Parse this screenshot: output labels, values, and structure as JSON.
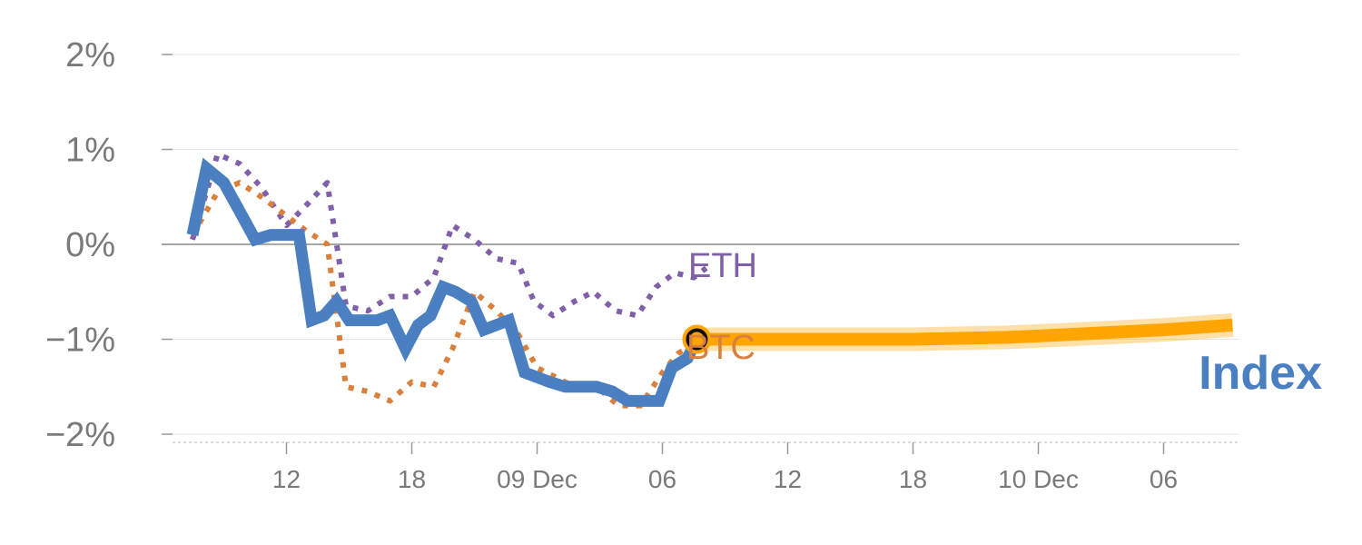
{
  "chart_data": {
    "type": "line",
    "y_unit": "%",
    "ylim": [
      -2,
      2
    ],
    "yticks": [
      -2,
      -1,
      0,
      1,
      2
    ],
    "ytick_labels": [
      "−2%",
      "−1%",
      "0%",
      "1%",
      "2%"
    ],
    "xlim": [
      -1,
      34
    ],
    "xticks": [
      {
        "pos": 3,
        "label": "12"
      },
      {
        "pos": 7,
        "label": "18"
      },
      {
        "pos": 11,
        "label": "09 Dec"
      },
      {
        "pos": 15,
        "label": "06"
      },
      {
        "pos": 19,
        "label": "12"
      },
      {
        "pos": 23,
        "label": "18"
      },
      {
        "pos": 27,
        "label": "10 Dec"
      },
      {
        "pos": 31,
        "label": "06"
      }
    ],
    "grid": true,
    "series": [
      {
        "name": "ETH",
        "label": "ETH",
        "style": "dotted",
        "color": "#8060a8",
        "x": [
          0,
          0.8,
          1.5,
          2.2,
          3,
          3.6,
          4.3,
          4.9,
          5.6,
          6.3,
          7,
          7.7,
          8.3,
          9,
          9.7,
          10.4,
          10.9,
          11.5,
          12.2,
          12.8,
          13.5,
          14.2,
          14.8,
          15.4,
          16,
          16.4
        ],
        "y": [
          0.05,
          0.95,
          0.85,
          0.6,
          0.2,
          0.4,
          0.65,
          -0.65,
          -0.7,
          -0.55,
          -0.55,
          -0.35,
          0.2,
          0.05,
          -0.15,
          -0.2,
          -0.6,
          -0.75,
          -0.6,
          -0.5,
          -0.7,
          -0.75,
          -0.45,
          -0.3,
          -0.35,
          -0.25
        ]
      },
      {
        "name": "BTC",
        "label": "BTC",
        "style": "dotted",
        "color": "#d9803c",
        "x": [
          0,
          0.8,
          1.5,
          2.2,
          3,
          3.6,
          4.3,
          4.9,
          5.6,
          6.3,
          7,
          7.7,
          8.3,
          9,
          9.7,
          10.4,
          11,
          11.6,
          12.2,
          12.9,
          13.6,
          14.3,
          15,
          15.5,
          16
        ],
        "y": [
          0.1,
          0.55,
          0.65,
          0.5,
          0.3,
          0.15,
          0.0,
          -1.5,
          -1.55,
          -1.65,
          -1.45,
          -1.5,
          -1.1,
          -0.5,
          -0.7,
          -0.95,
          -1.3,
          -1.4,
          -1.5,
          -1.5,
          -1.7,
          -1.7,
          -1.35,
          -1.15,
          -1.05
        ]
      },
      {
        "name": "Index",
        "label": "Index",
        "style": "solid",
        "color": "#4a7fc1",
        "x": [
          0,
          0.45,
          1.0,
          1.5,
          2.0,
          2.5,
          3.0,
          3.4,
          3.8,
          4.2,
          4.6,
          5.0,
          5.4,
          5.9,
          6.3,
          6.8,
          7.2,
          7.6,
          8.0,
          8.4,
          8.9,
          9.3,
          9.7,
          10.1,
          10.6,
          11.0,
          11.4,
          11.9,
          12.4,
          12.9,
          13.4,
          13.9,
          14.4,
          14.9,
          15.3,
          15.8,
          16.1
        ],
        "y": [
          0.1,
          0.8,
          0.65,
          0.35,
          0.05,
          0.1,
          0.1,
          0.1,
          -0.8,
          -0.75,
          -0.6,
          -0.8,
          -0.8,
          -0.8,
          -0.75,
          -1.1,
          -0.85,
          -0.75,
          -0.45,
          -0.5,
          -0.6,
          -0.9,
          -0.85,
          -0.8,
          -1.35,
          -1.4,
          -1.45,
          -1.5,
          -1.5,
          -1.5,
          -1.55,
          -1.65,
          -1.65,
          -1.65,
          -1.3,
          -1.2,
          -1.0
        ]
      },
      {
        "name": "Index forecast",
        "style": "band",
        "color": "#ffa500",
        "x": [
          16.1,
          19,
          23,
          26,
          28,
          31,
          33.2
        ],
        "y": [
          -1.0,
          -1.0,
          -1.0,
          -0.98,
          -0.95,
          -0.9,
          -0.85
        ]
      }
    ],
    "marker": {
      "x": 16.1,
      "y": -1.0,
      "color": "#ffa500"
    }
  }
}
